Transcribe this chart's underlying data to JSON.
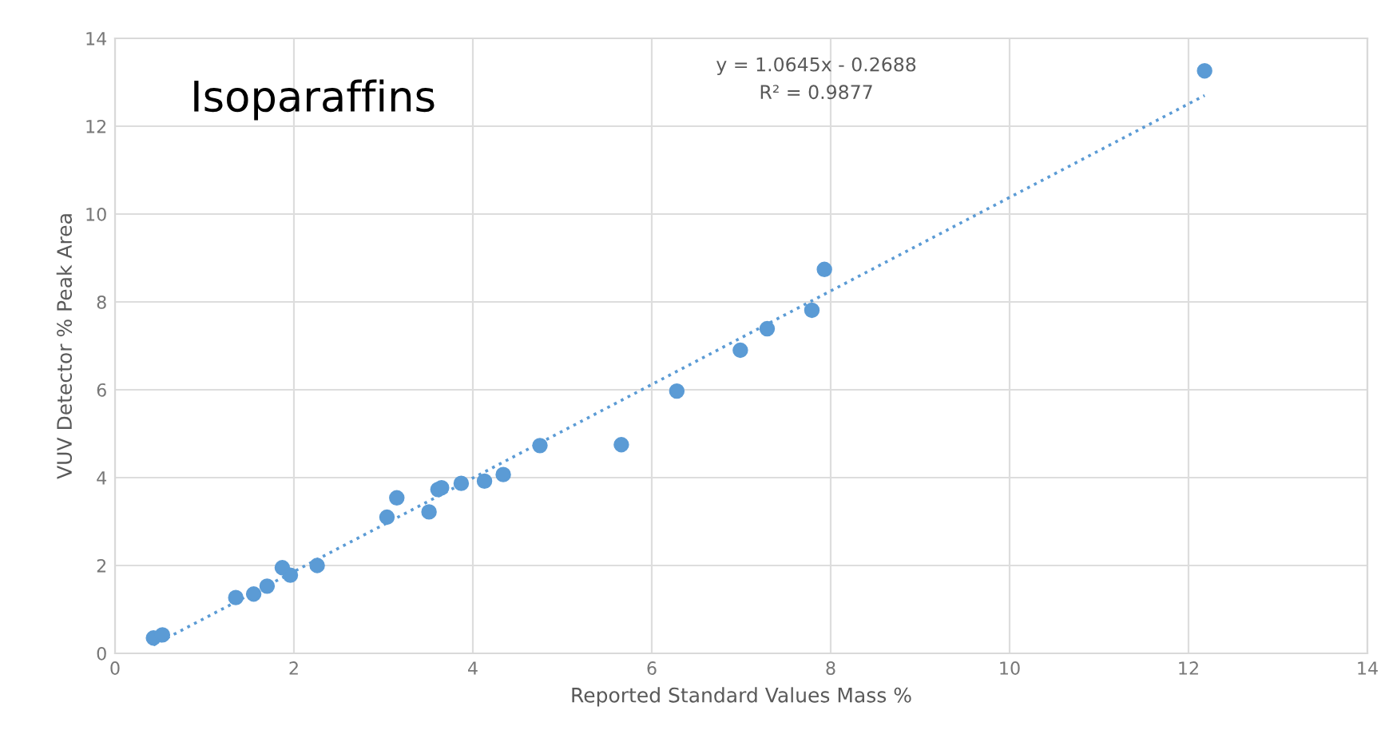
{
  "chart_data": {
    "type": "scatter",
    "title": "Isoparaffins",
    "xlabel": "Reported Standard Values Mass %",
    "ylabel": "VUV Detector % Peak Area",
    "annotations": [
      "y = 1.0645x - 0.2688",
      "R² = 0.9877"
    ],
    "series": [
      {
        "color": "#5b9bd5",
        "marker": "circle",
        "x": [
          0.43,
          0.53,
          1.35,
          1.55,
          1.7,
          1.87,
          1.96,
          2.26,
          3.04,
          3.15,
          3.51,
          3.61,
          3.65,
          3.87,
          4.13,
          4.34,
          4.75,
          5.66,
          6.28,
          6.99,
          7.29,
          7.79,
          7.93,
          12.18
        ],
        "values": [
          0.35,
          0.42,
          1.27,
          1.35,
          1.53,
          1.95,
          1.78,
          2.0,
          3.1,
          3.54,
          3.22,
          3.73,
          3.77,
          3.87,
          3.92,
          4.07,
          4.73,
          4.75,
          5.97,
          6.9,
          7.39,
          7.81,
          8.74,
          13.26
        ]
      },
      {
        "type": "line",
        "color": "#5b9bd5",
        "line_style": "dotted",
        "marker": "none",
        "x": [
          0.43,
          12.18
        ],
        "values": [
          0.19,
          12.7
        ]
      }
    ],
    "xlim": [
      0,
      14
    ],
    "ylim": [
      0,
      14
    ],
    "xticks": [
      0,
      2,
      4,
      6,
      8,
      10,
      12,
      14
    ],
    "yticks": [
      0,
      2,
      4,
      6,
      8,
      10,
      12,
      14
    ],
    "grid": true
  }
}
